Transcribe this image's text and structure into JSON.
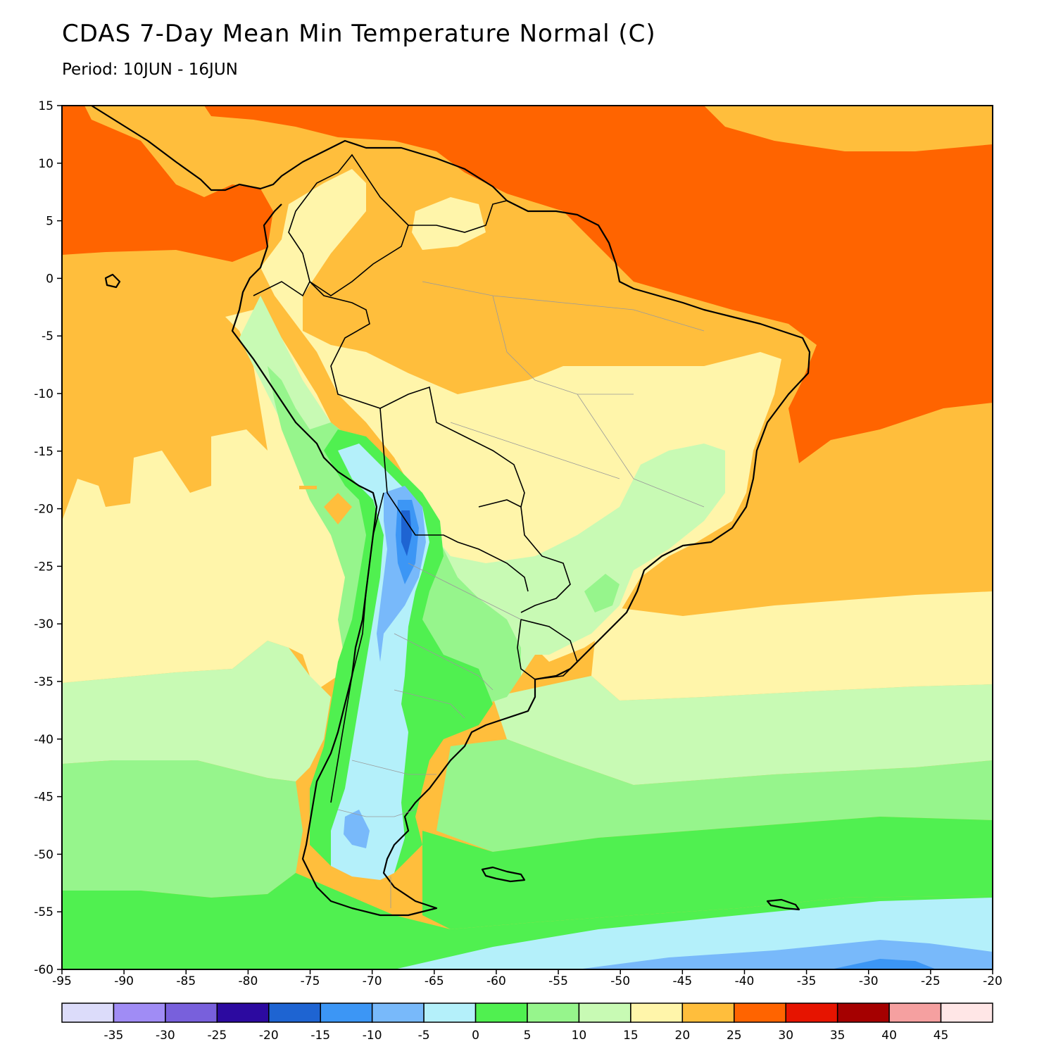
{
  "header": {
    "title": "CDAS 7-Day Mean Min Temperature Normal (C)",
    "subtitle": "Period: 10JUN - 16JUN"
  },
  "map": {
    "region": "South America",
    "lon_range": [
      -95,
      -20
    ],
    "lat_range": [
      -60,
      15
    ],
    "x_ticks": [
      "-95",
      "-90",
      "-85",
      "-80",
      "-75",
      "-70",
      "-65",
      "-60",
      "-55",
      "-50",
      "-45",
      "-40",
      "-35",
      "-30",
      "-25",
      "-20"
    ],
    "y_ticks": [
      "15",
      "10",
      "5",
      "0",
      "-5",
      "-10",
      "-15",
      "-20",
      "-25",
      "-30",
      "-35",
      "-40",
      "-45",
      "-50",
      "-55",
      "-60"
    ]
  },
  "colorbar": {
    "units": "C",
    "colors": [
      "#dcdcfa",
      "#a08cf5",
      "#7860dc",
      "#2c0aa0",
      "#1e64d2",
      "#3c96f5",
      "#78b9fa",
      "#b4f0fa",
      "#50f050",
      "#96f58c",
      "#c8fab4",
      "#fff5aa",
      "#ffbe3c",
      "#ff6400",
      "#e61400",
      "#a50000",
      "#f5a0a0",
      "#ffe6e6"
    ],
    "labels": [
      "-35",
      "-30",
      "-25",
      "-20",
      "-15",
      "-10",
      "-5",
      "0",
      "5",
      "10",
      "15",
      "20",
      "25",
      "30",
      "35",
      "40",
      "45"
    ]
  }
}
